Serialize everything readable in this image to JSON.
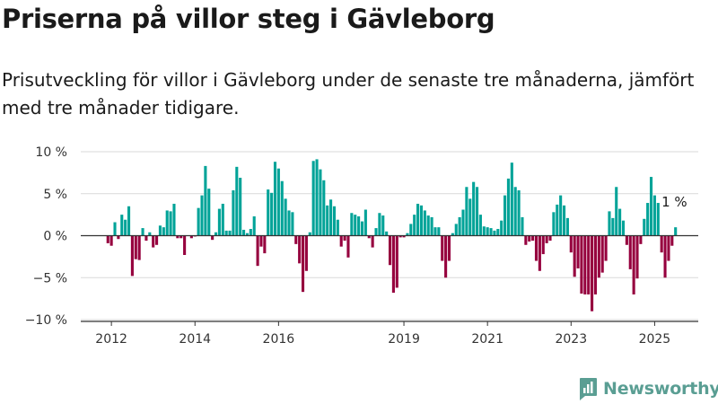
{
  "title": "Priserna på villor steg i Gävleborg",
  "subtitle": "Prisutveckling för villor i Gävleborg under de senaste tre månaderna, jämfört med tre månader tidigare.",
  "logo_text": "Newsworthy",
  "colors": {
    "positive": "#00a398",
    "negative": "#96003e",
    "grid": "#d9d9d9",
    "zero": "#333333",
    "logo": "#5a9e93"
  },
  "chart_data": {
    "type": "bar",
    "x_start": "2011-12",
    "x_step": "month",
    "ylim": [
      -10,
      10
    ],
    "y_ticks": [
      10,
      5,
      0,
      -5,
      -10
    ],
    "y_tick_labels": [
      "10 %",
      "5 %",
      "0 %",
      "−5 %",
      "−10 %"
    ],
    "x_tick_labels": [
      "2012",
      "2014",
      "2016",
      "2019",
      "2021",
      "2023",
      "2025"
    ],
    "x_tick_positions": [
      "2012-01",
      "2014-01",
      "2016-01",
      "2019-01",
      "2021-01",
      "2023-01",
      "2025-01"
    ],
    "annotation": "1 %",
    "values": [
      -0.9,
      -1.2,
      1.6,
      -0.4,
      2.5,
      1.9,
      3.5,
      -4.8,
      -2.8,
      -2.9,
      0.9,
      -0.6,
      0.4,
      -1.4,
      -1.1,
      1.2,
      1.0,
      3.0,
      2.9,
      3.8,
      -0.3,
      -0.3,
      -2.3,
      0.0,
      -0.3,
      -0.1,
      3.3,
      4.8,
      8.3,
      5.6,
      -0.5,
      0.4,
      3.2,
      3.8,
      0.6,
      0.6,
      5.4,
      8.2,
      6.9,
      0.7,
      0.3,
      0.8,
      2.3,
      -3.6,
      -1.3,
      -2.1,
      5.5,
      5.1,
      8.8,
      8.0,
      6.5,
      4.4,
      3.0,
      2.8,
      -1.0,
      -3.3,
      -6.7,
      -4.2,
      0.4,
      8.9,
      9.1,
      7.9,
      6.6,
      3.6,
      4.3,
      3.5,
      1.9,
      -1.3,
      -0.6,
      -2.6,
      2.7,
      2.5,
      2.3,
      1.7,
      3.1,
      -0.3,
      -1.4,
      0.9,
      2.7,
      2.4,
      0.5,
      -3.5,
      -6.8,
      -6.2,
      -0.2,
      -0.2,
      0.3,
      1.4,
      2.5,
      3.8,
      3.6,
      3.0,
      2.4,
      2.2,
      1.0,
      1.0,
      -3.0,
      -5.0,
      -3.0,
      0.3,
      1.4,
      2.2,
      3.1,
      5.8,
      4.4,
      6.4,
      5.8,
      2.5,
      1.1,
      1.0,
      0.9,
      0.6,
      0.8,
      1.8,
      4.8,
      6.8,
      8.7,
      5.8,
      5.4,
      2.2,
      -1.1,
      -0.7,
      -0.6,
      -3.0,
      -4.2,
      -2.2,
      -0.9,
      -0.6,
      2.8,
      3.7,
      4.8,
      3.6,
      2.1,
      -2.0,
      -4.9,
      -3.9,
      -6.9,
      -7.0,
      -7.0,
      -9.0,
      -7.0,
      -5.0,
      -4.4,
      -3.0,
      2.9,
      2.1,
      5.8,
      3.2,
      1.8,
      -1.1,
      -4.0,
      -7.0,
      -5.1,
      -1.0,
      2.0,
      3.9,
      7.0,
      4.8,
      3.9,
      -2.0,
      -5.0,
      -3.0,
      -1.2,
      1.0
    ]
  }
}
